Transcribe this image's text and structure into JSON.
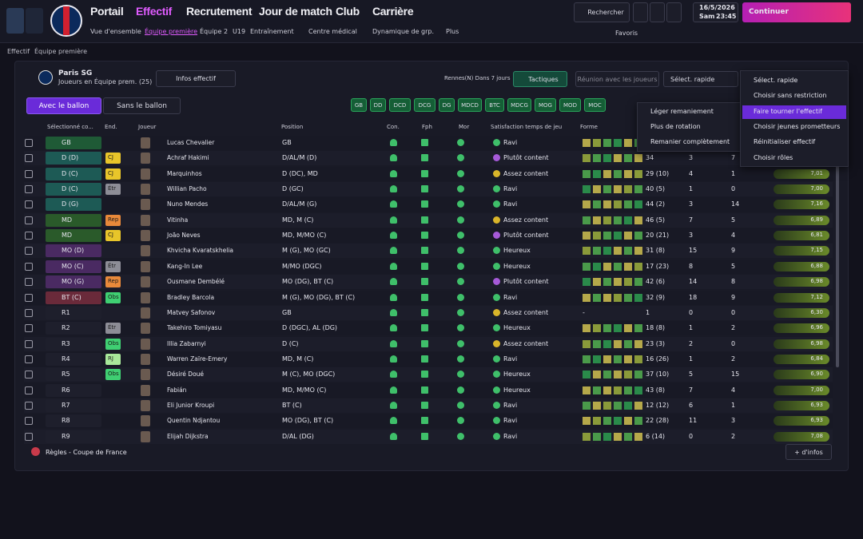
{
  "nav": {
    "items": [
      "Portail",
      "Effectif",
      "Recrutement",
      "Jour de match",
      "Club",
      "Carrière"
    ],
    "search": "Rechercher",
    "date": "16/5/2026",
    "day": "Sam",
    "time": "23:45",
    "continue": "Continuer"
  },
  "subnav": {
    "items": [
      "Vue d'ensemble",
      "Équipe première",
      "Équipe 2",
      "U19",
      "Entraînement",
      "Centre médical",
      "Dynamique de grp."
    ],
    "more": "Plus",
    "favorites": "Favoris"
  },
  "breadcrumb": [
    "Effectif",
    "Équipe première"
  ],
  "panel": {
    "club": "Paris SG",
    "subtitle": "Joueurs en Équipe prem. (25)",
    "info_button": "Infos effectif",
    "next_match": "Rennes(N) Dans 7 jours",
    "tactics": "Tactiques",
    "meeting": "Réunion avec les joueurs",
    "quick_select": "Sélect. rapide"
  },
  "tabs": [
    "Avec le ballon",
    "Sans le ballon"
  ],
  "position_chips": [
    "GB",
    "DD",
    "DCD",
    "DCG",
    "DG",
    "MDCD",
    "BTC",
    "MDCG",
    "MOG",
    "MOD",
    "MOC"
  ],
  "table": {
    "columns": [
      "Sélectionné co...",
      "End.",
      "Joueur",
      "Position",
      "Con.",
      "Fph",
      "Mor",
      "Satisfaction temps de jeu",
      "Forme"
    ],
    "rows": [
      {
        "sel": "GB",
        "sel_color": "#1f5a36",
        "end": null,
        "end_color": null,
        "name": "Lucas Chevalier",
        "position": "GB",
        "satisfaction": "Ravi",
        "sat_color": "#3fbf6a",
        "form": null,
        "apps": null,
        "goals": null,
        "assists": null,
        "rating": null
      },
      {
        "sel": "D (D)",
        "sel_color": "#1d5a55",
        "end": "CJ",
        "end_color": "#e8c52a",
        "name": "Achraf Hakimi",
        "position": "D/AL/M (D)",
        "satisfaction": "Plutôt content",
        "sat_color": "#a65ad8",
        "form": null,
        "apps": "34",
        "goals": "3",
        "assists": "7",
        "rating": null
      },
      {
        "sel": "D (C)",
        "sel_color": "#1d5a55",
        "end": "CJ",
        "end_color": "#e8c52a",
        "name": "Marquinhos",
        "position": "D (DC), MD",
        "satisfaction": "Assez content",
        "sat_color": "#d9b52a",
        "form": null,
        "apps": "29 (10)",
        "goals": "4",
        "assists": "1",
        "rating": "7,01"
      },
      {
        "sel": "D (C)",
        "sel_color": "#1d5a55",
        "end": "Étr",
        "end_color": "#8d8d96",
        "name": "Willian Pacho",
        "position": "D (GC)",
        "satisfaction": "Ravi",
        "sat_color": "#3fbf6a",
        "form": null,
        "apps": "40 (5)",
        "goals": "1",
        "assists": "0",
        "rating": "7,00"
      },
      {
        "sel": "D (G)",
        "sel_color": "#1d5a55",
        "end": null,
        "end_color": null,
        "name": "Nuno Mendes",
        "position": "D/AL/M (G)",
        "satisfaction": "Ravi",
        "sat_color": "#3fbf6a",
        "form": null,
        "apps": "44 (2)",
        "goals": "3",
        "assists": "14",
        "rating": "7,16"
      },
      {
        "sel": "MD",
        "sel_color": "#2a5a2a",
        "end": "Rep",
        "end_color": "#e8893a",
        "name": "Vitinha",
        "position": "MD, M (C)",
        "satisfaction": "Assez content",
        "sat_color": "#d9b52a",
        "form": null,
        "apps": "46 (5)",
        "goals": "7",
        "assists": "5",
        "rating": "6,89"
      },
      {
        "sel": "MD",
        "sel_color": "#2a5a2a",
        "end": "CJ",
        "end_color": "#e8c52a",
        "name": "João Neves",
        "position": "MD, M/MO (C)",
        "satisfaction": "Plutôt content",
        "sat_color": "#a65ad8",
        "form": null,
        "apps": "20 (21)",
        "goals": "3",
        "assists": "4",
        "rating": "6,81"
      },
      {
        "sel": "MO (D)",
        "sel_color": "#4a2a62",
        "end": null,
        "end_color": null,
        "name": "Khvicha Kvaratskhelia",
        "position": "M (G), MO (GC)",
        "satisfaction": "Heureux",
        "sat_color": "#3fbf6a",
        "form": null,
        "apps": "31 (8)",
        "goals": "15",
        "assists": "9",
        "rating": "7,15"
      },
      {
        "sel": "MO (C)",
        "sel_color": "#4a2a62",
        "end": "Étr",
        "end_color": "#8d8d96",
        "name": "Kang-In Lee",
        "position": "M/MO (DGC)",
        "satisfaction": "Heureux",
        "sat_color": "#3fbf6a",
        "form": null,
        "apps": "17 (23)",
        "goals": "8",
        "assists": "5",
        "rating": "6,88"
      },
      {
        "sel": "MO (G)",
        "sel_color": "#4a2a62",
        "end": "Rep",
        "end_color": "#e8893a",
        "name": "Ousmane Dembélé",
        "position": "MO (DG), BT (C)",
        "satisfaction": "Plutôt content",
        "sat_color": "#a65ad8",
        "form": null,
        "apps": "42 (6)",
        "goals": "14",
        "assists": "8",
        "rating": "6,98"
      },
      {
        "sel": "BT (C)",
        "sel_color": "#6a2a3a",
        "end": "Obs",
        "end_color": "#3fcf72",
        "name": "Bradley Barcola",
        "position": "M (G), MO (DG), BT (C)",
        "satisfaction": "Ravi",
        "sat_color": "#3fbf6a",
        "form": null,
        "apps": "32 (9)",
        "goals": "18",
        "assists": "9",
        "rating": "7,12"
      },
      {
        "sel": "R1",
        "sel_color": "#1e1f2c",
        "end": null,
        "end_color": null,
        "name": "Matvey Safonov",
        "position": "GB",
        "satisfaction": "Assez content",
        "sat_color": "#d9b52a",
        "form": "-",
        "apps": "1",
        "goals": "0",
        "assists": "0",
        "rating": "6,30"
      },
      {
        "sel": "R2",
        "sel_color": "#1e1f2c",
        "end": "Étr",
        "end_color": "#8d8d96",
        "name": "Takehiro Tomiyasu",
        "position": "D (DGC), AL (DG)",
        "satisfaction": "Heureux",
        "sat_color": "#3fbf6a",
        "form": null,
        "apps": "18 (8)",
        "goals": "1",
        "assists": "2",
        "rating": "6,96"
      },
      {
        "sel": "R3",
        "sel_color": "#1e1f2c",
        "end": "Obs",
        "end_color": "#3fcf72",
        "name": "Illia Zabarnyi",
        "position": "D (C)",
        "satisfaction": "Assez content",
        "sat_color": "#d9b52a",
        "form": null,
        "apps": "23 (3)",
        "goals": "2",
        "assists": "0",
        "rating": "6,98"
      },
      {
        "sel": "R4",
        "sel_color": "#1e1f2c",
        "end": "RJ",
        "end_color": "#a8e89a",
        "name": "Warren Zaïre-Emery",
        "position": "MD, M (C)",
        "satisfaction": "Ravi",
        "sat_color": "#3fbf6a",
        "form": null,
        "apps": "16 (26)",
        "goals": "1",
        "assists": "2",
        "rating": "6,84"
      },
      {
        "sel": "R5",
        "sel_color": "#1e1f2c",
        "end": "Obs",
        "end_color": "#3fcf72",
        "name": "Désiré Doué",
        "position": "M (C), MO (DGC)",
        "satisfaction": "Heureux",
        "sat_color": "#3fbf6a",
        "form": null,
        "apps": "37 (10)",
        "goals": "5",
        "assists": "15",
        "rating": "6,90"
      },
      {
        "sel": "R6",
        "sel_color": "#1e1f2c",
        "end": null,
        "end_color": null,
        "name": "Fabián",
        "position": "MD, M/MO (C)",
        "satisfaction": "Heureux",
        "sat_color": "#3fbf6a",
        "form": null,
        "apps": "43 (8)",
        "goals": "7",
        "assists": "4",
        "rating": "7,00"
      },
      {
        "sel": "R7",
        "sel_color": "#1e1f2c",
        "end": null,
        "end_color": null,
        "name": "Eli Junior Kroupi",
        "position": "BT (C)",
        "satisfaction": "Ravi",
        "sat_color": "#3fbf6a",
        "form": null,
        "apps": "12 (12)",
        "goals": "6",
        "assists": "1",
        "rating": "6,93"
      },
      {
        "sel": "R8",
        "sel_color": "#1e1f2c",
        "end": null,
        "end_color": null,
        "name": "Quentin Ndjantou",
        "position": "MO (DG), BT (C)",
        "satisfaction": "Ravi",
        "sat_color": "#3fbf6a",
        "form": null,
        "apps": "22 (28)",
        "goals": "11",
        "assists": "3",
        "rating": "6,93"
      },
      {
        "sel": "R9",
        "sel_color": "#1e1f2c",
        "end": null,
        "end_color": null,
        "name": "Elijah Dijkstra",
        "position": "D/AL (DG)",
        "satisfaction": "Ravi",
        "sat_color": "#3fbf6a",
        "form": null,
        "apps": "6 (14)",
        "goals": "0",
        "assists": "2",
        "rating": "7,08"
      }
    ]
  },
  "rotation_menu": [
    "Léger remaniement",
    "Plus de rotation",
    "Remanier complètement"
  ],
  "quick_select_menu": [
    "Sélect. rapide",
    "Choisir sans restriction",
    "Faire tourner l'effectif",
    "Choisir jeunes prometteurs",
    "Réinitialiser effectif",
    "Choisir rôles"
  ],
  "footer": {
    "rules": "Règles - Coupe de France",
    "more": "+ d'infos"
  }
}
